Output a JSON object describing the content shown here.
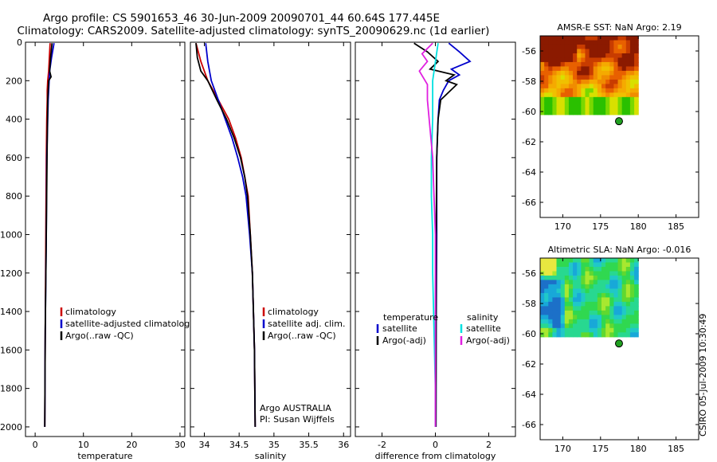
{
  "header": {
    "line1": "Argo profile: CS 5901653_46 30-Jun-2009 20090701_44 60.64S 177.445E",
    "line2": "Climatology: CARS2009. Satellite-adjusted climatology: synTS_20090629.nc (1d earlier)"
  },
  "footer": {
    "stamp": "CSIRO 05-Jul-2009 10:30:49",
    "institution": "Argo AUSTRALIA",
    "pi": "PI: Susan Wijffels"
  },
  "colors": {
    "clim": "#cc0000",
    "sat": "#0000cc",
    "argo": "#000000",
    "sat_sal": "#00e0e0",
    "argo_sal": "#e020e0",
    "map_dot": "#20a020"
  },
  "chart_data": [
    {
      "id": "temperature",
      "type": "line",
      "xlabel": "temperature",
      "ylabel": "",
      "xlim": [
        -2,
        31
      ],
      "ylim": [
        2050,
        0
      ],
      "xticks": [
        0,
        10,
        20,
        30
      ],
      "yticks": [
        0,
        200,
        400,
        600,
        800,
        1000,
        1200,
        1400,
        1600,
        1800,
        2000
      ],
      "legend": [
        "climatology",
        "satellite-adjusted climatology",
        "Argo(..raw -QC)"
      ],
      "series": [
        {
          "name": "climatology",
          "color": "clim",
          "x": [
            3.1,
            2.9,
            2.8,
            2.6,
            2.5,
            2.5,
            2.4,
            2.3,
            2.2,
            2.1,
            2.0
          ],
          "y": [
            5,
            100,
            150,
            200,
            250,
            300,
            400,
            600,
            1000,
            1500,
            2000
          ]
        },
        {
          "name": "satellite-adjusted climatology",
          "color": "sat",
          "x": [
            3.9,
            3.4,
            3.0,
            2.9,
            2.7,
            2.6,
            2.4,
            2.3,
            2.1,
            2.0
          ],
          "y": [
            5,
            80,
            150,
            200,
            300,
            400,
            600,
            1000,
            1500,
            2000
          ]
        },
        {
          "name": "Argo(..raw -QC)",
          "color": "argo",
          "x": [
            3.5,
            3.2,
            3.0,
            3.3,
            2.8,
            2.6,
            2.5,
            2.3,
            2.1,
            2.0
          ],
          "y": [
            5,
            80,
            150,
            180,
            200,
            300,
            500,
            1000,
            1500,
            2000
          ]
        }
      ]
    },
    {
      "id": "salinity",
      "type": "line",
      "xlabel": "salinity",
      "ylabel": "",
      "xlim": [
        33.8,
        36.1
      ],
      "ylim": [
        2050,
        0
      ],
      "xticks": [
        34,
        34.5,
        35,
        35.5,
        36
      ],
      "yticks": [
        0,
        200,
        400,
        600,
        800,
        1000,
        1200,
        1400,
        1600,
        1800,
        2000
      ],
      "legend": [
        "climatology",
        "satellite adj. clim.",
        "Argo(..raw -QC)"
      ],
      "series": [
        {
          "name": "climatology",
          "color": "clim",
          "x": [
            33.88,
            33.95,
            34.05,
            34.2,
            34.35,
            34.45,
            34.53,
            34.58,
            34.63,
            34.66,
            34.69,
            34.72,
            34.73
          ],
          "y": [
            5,
            100,
            200,
            300,
            400,
            500,
            600,
            700,
            800,
            1000,
            1200,
            1600,
            2000
          ]
        },
        {
          "name": "satellite adj. clim.",
          "color": "sat",
          "x": [
            34.02,
            34.05,
            34.1,
            34.2,
            34.3,
            34.4,
            34.48,
            34.55,
            34.6,
            34.65,
            34.69,
            34.72,
            34.73
          ],
          "y": [
            5,
            100,
            200,
            300,
            400,
            500,
            600,
            700,
            800,
            1000,
            1200,
            1600,
            2000
          ]
        },
        {
          "name": "Argo(..raw -QC)",
          "color": "argo",
          "x": [
            33.88,
            33.9,
            33.95,
            34.05,
            34.18,
            34.32,
            34.43,
            34.52,
            34.58,
            34.62,
            34.66,
            34.69,
            34.72,
            34.73
          ],
          "y": [
            5,
            80,
            150,
            200,
            300,
            400,
            500,
            600,
            700,
            800,
            1000,
            1200,
            1600,
            2000
          ]
        }
      ]
    },
    {
      "id": "difference",
      "type": "line",
      "xlabel": "difference from climatology",
      "ylabel": "",
      "xlim": [
        -3,
        3
      ],
      "ylim": [
        2050,
        0
      ],
      "xticks": [
        -2,
        0,
        2
      ],
      "yticks": [
        0,
        200,
        400,
        600,
        800,
        1000,
        1200,
        1400,
        1600,
        1800,
        2000
      ],
      "legend_groups": [
        {
          "heading": "temperature",
          "items": [
            {
              "label": "satellite",
              "color": "sat"
            },
            {
              "label": "Argo(-adj)",
              "color": "argo"
            }
          ]
        },
        {
          "heading": "salinity",
          "items": [
            {
              "label": "satellite",
              "color": "sat_sal"
            },
            {
              "label": "Argo(-adj)",
              "color": "argo_sal"
            }
          ]
        }
      ],
      "series": [
        {
          "name": "temperature satellite",
          "color": "sat",
          "x": [
            0.5,
            0.9,
            1.3,
            0.6,
            0.9,
            0.5,
            0.3,
            0.15,
            0.1,
            0.05,
            0.05,
            0.03,
            0.02
          ],
          "y": [
            5,
            50,
            100,
            140,
            170,
            200,
            250,
            300,
            400,
            600,
            1000,
            1500,
            2000
          ]
        },
        {
          "name": "temperature Argo(-adj)",
          "color": "argo",
          "x": [
            -0.8,
            -0.3,
            0.1,
            -0.2,
            0.7,
            0.4,
            0.8,
            0.2,
            0.1,
            0.05,
            0.03,
            0.02
          ],
          "y": [
            5,
            50,
            100,
            140,
            170,
            200,
            220,
            300,
            400,
            600,
            1000,
            2000
          ]
        },
        {
          "name": "salinity satellite",
          "color": "sat_sal",
          "x": [
            0.1,
            -0.1,
            -0.1,
            -0.15,
            -0.15,
            -0.1,
            -0.1,
            -0.05,
            0.0,
            0.0
          ],
          "y": [
            5,
            200,
            400,
            600,
            800,
            1000,
            1200,
            1500,
            1800,
            2000
          ]
        },
        {
          "name": "salinity Argo(-adj)",
          "color": "argo_sal",
          "x": [
            -0.1,
            -0.5,
            -0.3,
            -0.6,
            -0.3,
            -0.3,
            -0.1,
            0.0,
            0.0
          ],
          "y": [
            5,
            60,
            100,
            150,
            220,
            300,
            600,
            1000,
            2000
          ]
        }
      ]
    },
    {
      "id": "sst_map",
      "type": "heatmap",
      "title": "AMSR-E SST: NaN Argo: 2.19",
      "xlim": [
        167,
        188
      ],
      "ylim": [
        -67,
        -55
      ],
      "xticks": [
        170,
        175,
        180,
        185
      ],
      "yticks": [
        -56,
        -58,
        -60,
        -62,
        -64,
        -66
      ],
      "extent_lon": [
        167,
        180
      ],
      "extent_lat": [
        -60.2,
        -55
      ],
      "argo_lon": 177.445,
      "argo_lat": -60.64,
      "palette": [
        "#8b1a00",
        "#c83c00",
        "#e86000",
        "#f08c00",
        "#f5aa00",
        "#f0c000",
        "#d8e000",
        "#7ad800",
        "#2ac000"
      ]
    },
    {
      "id": "sla_map",
      "type": "heatmap",
      "title": "Altimetric SLA: NaN Argo: -0.016",
      "xlim": [
        167,
        188
      ],
      "ylim": [
        -67,
        -55
      ],
      "xticks": [
        170,
        175,
        180,
        185
      ],
      "yticks": [
        -56,
        -58,
        -60,
        -62,
        -64,
        -66
      ],
      "extent_lon": [
        167,
        180
      ],
      "extent_lat": [
        -60.2,
        -55
      ],
      "argo_lon": 177.445,
      "argo_lat": -60.64,
      "palette": [
        "#1c70c8",
        "#18a8d8",
        "#20c8c8",
        "#28d890",
        "#30d850",
        "#60d830",
        "#a8e830",
        "#e8e840"
      ]
    }
  ]
}
